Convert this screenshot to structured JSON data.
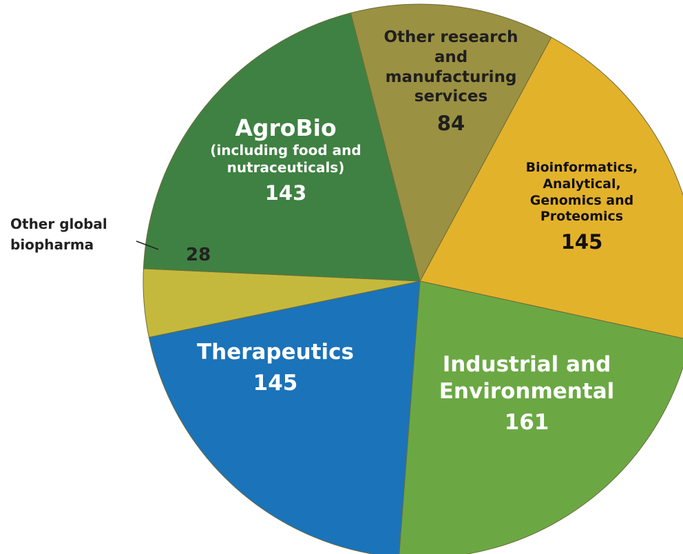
{
  "chart_data": {
    "type": "pie",
    "categories": [
      "Other research and manufacturing services",
      "Bioinformatics, Analytical, Genomics and Proteomics",
      "Industrial and Environmental",
      "Therapeutics",
      "Other global biopharma",
      "AgroBio"
    ],
    "notes": [
      null,
      null,
      null,
      null,
      null,
      "(including food and nutraceuticals)"
    ],
    "values": [
      84,
      145,
      161,
      145,
      28,
      143
    ],
    "colors": [
      "#9b9142",
      "#e3b22b",
      "#6ba844",
      "#1b73b9",
      "#c5b93d",
      "#3f8142"
    ]
  }
}
